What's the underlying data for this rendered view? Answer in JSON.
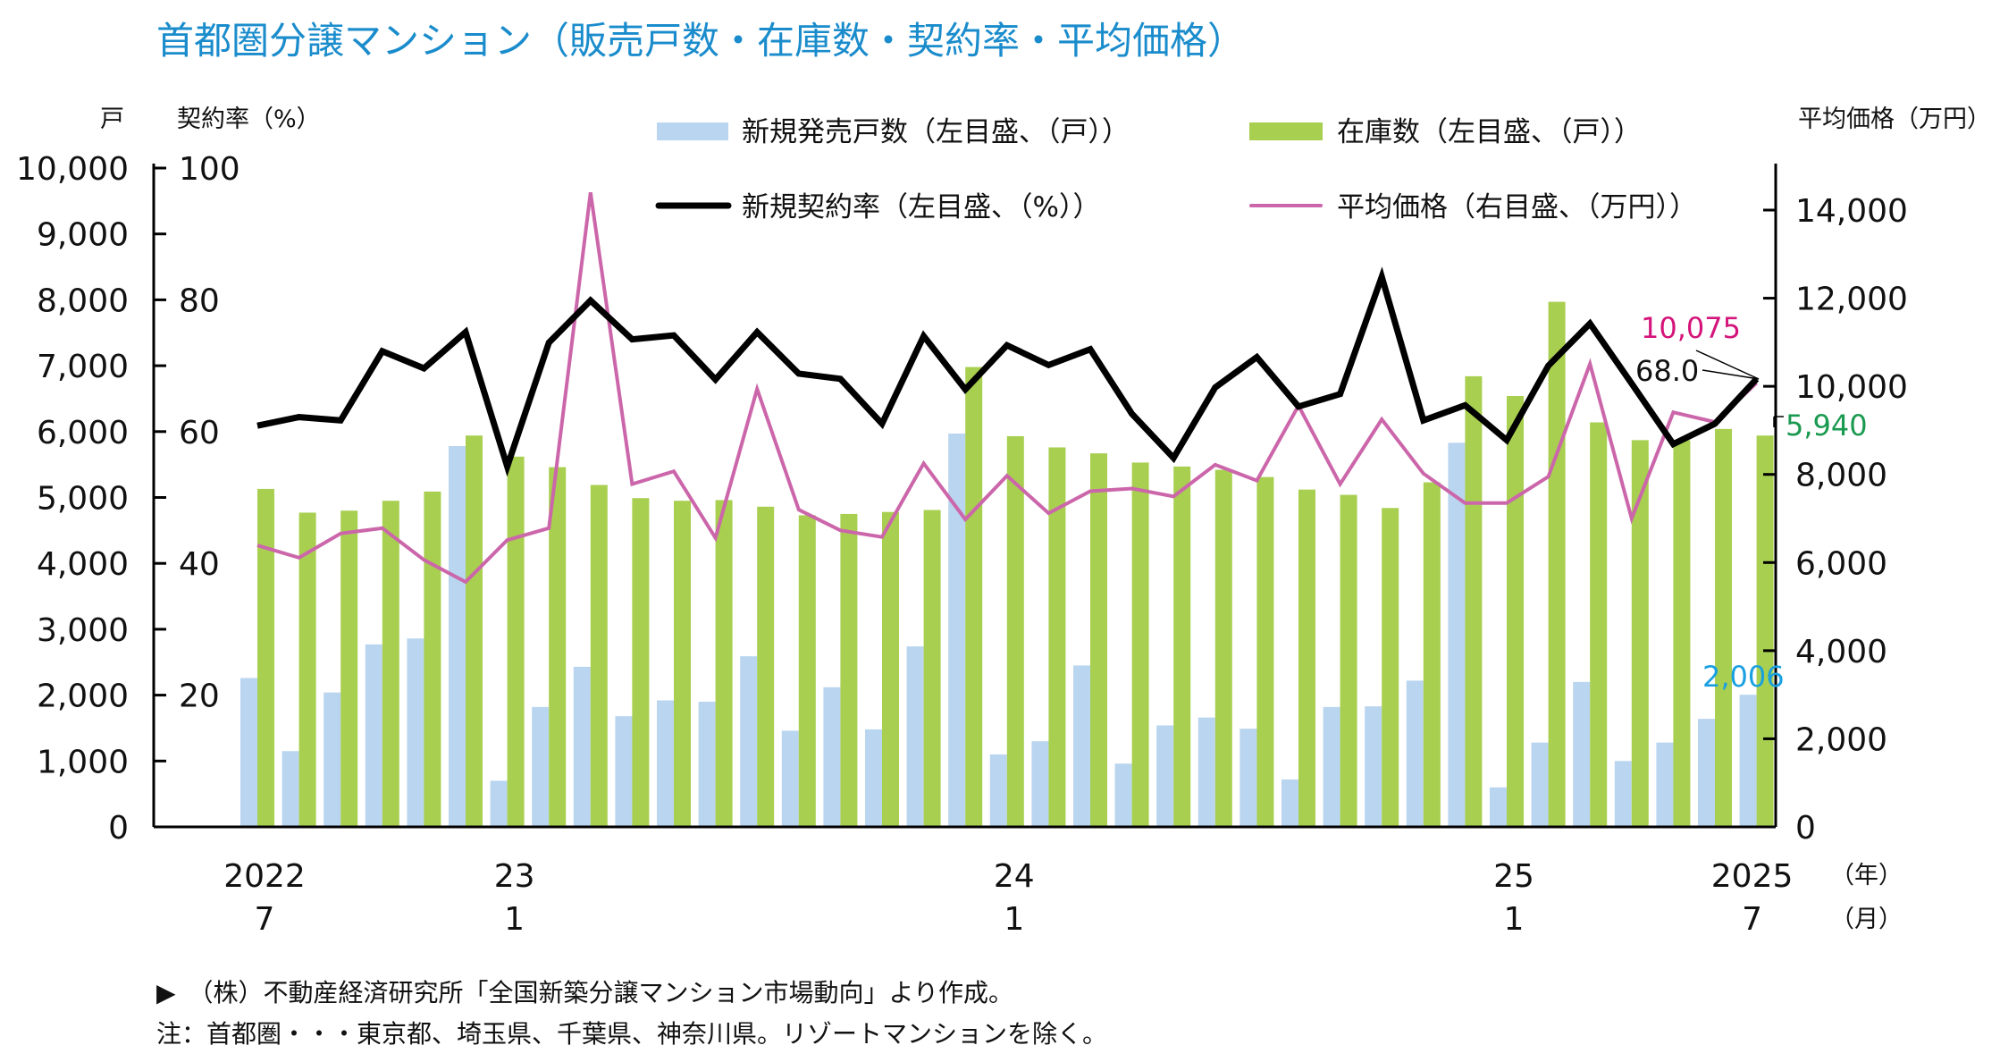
{
  "title": "首都圏分譲マンション（販売戸数・在庫数・契約率・平均価格）",
  "colors": {
    "title": "#1a8ccc",
    "new_sales": "#b9d5ef",
    "inventory": "#a8cf50",
    "contract_rate": "#000000",
    "avg_price": "#cc66aa",
    "price_label": "#d4147a",
    "inventory_label": "#1a9a50",
    "sales_label": "#1aa0e0"
  },
  "footnotes": [
    "▶　（株）不動産経済研究所「全国新築分譲マンション市場動向」より作成。",
    "注：首都圏・・・東京都、埼玉県、千葉県、神奈川県。リゾートマンションを除く。"
  ],
  "chart_data": {
    "type": "bar+line",
    "title": "首都圏分譲マンション（販売戸数・在庫数・契約率・平均価格）",
    "left_axis": {
      "unit_label": "戸",
      "ylim": [
        0,
        10000
      ],
      "ticks": [
        "0",
        "1,000",
        "2,000",
        "3,000",
        "4,000",
        "5,000",
        "6,000",
        "7,000",
        "8,000",
        "9,000",
        "10,000"
      ]
    },
    "rate_axis": {
      "unit_label": "契約率（%）",
      "ylim": [
        0,
        100
      ],
      "ticks": [
        "20",
        "40",
        "60",
        "80",
        "100"
      ]
    },
    "right_axis": {
      "unit_label": "平均価格（万円）",
      "ylim": [
        0,
        15000
      ],
      "ticks": [
        "0",
        "2,000",
        "4,000",
        "6,000",
        "8,000",
        "10,000",
        "12,000",
        "14,000"
      ]
    },
    "x_labels": [
      {
        "index": 0,
        "year": "2022",
        "month": "7"
      },
      {
        "index": 6,
        "year": "23",
        "month": "1"
      },
      {
        "index": 18,
        "year": "24",
        "month": "1"
      },
      {
        "index": 30,
        "year": "25",
        "month": "1"
      },
      {
        "index": 36,
        "year": "2025",
        "month": "7"
      }
    ],
    "x_unit_year": "（年）",
    "x_unit_month": "（月）",
    "x_range": [
      "2022-07",
      "2025-07"
    ],
    "legend_placement": "top",
    "grid": false,
    "series": [
      {
        "name": "新規発売戸数（左目盛、（戸））",
        "type": "bar",
        "axis": "left",
        "values": [
          2260,
          1150,
          2040,
          2770,
          2860,
          5780,
          700,
          1820,
          2430,
          1680,
          1920,
          1900,
          2590,
          1460,
          2120,
          1480,
          2740,
          5970,
          1100,
          1300,
          2450,
          960,
          1540,
          1660,
          1490,
          720,
          1820,
          1830,
          2220,
          5830,
          600,
          1280,
          2200,
          1000,
          1280,
          1640,
          2006
        ]
      },
      {
        "name": "在庫数（左目盛、（戸））",
        "type": "bar",
        "axis": "left",
        "values": [
          5130,
          4770,
          4800,
          4950,
          5090,
          5940,
          5620,
          5460,
          5190,
          4990,
          4950,
          4960,
          4860,
          4730,
          4750,
          4780,
          4810,
          6980,
          5930,
          5760,
          5670,
          5530,
          5470,
          5420,
          5310,
          5120,
          5040,
          4840,
          5230,
          6840,
          6540,
          7970,
          6140,
          5870,
          5870,
          6040,
          5940
        ]
      },
      {
        "name": "新規契約率（左目盛、（%））",
        "type": "line",
        "axis": "rate",
        "values": [
          60.9,
          62.2,
          61.7,
          72.2,
          69.6,
          75.1,
          54.7,
          73.5,
          79.9,
          74.0,
          74.6,
          67.9,
          75.1,
          68.8,
          68.0,
          61.2,
          74.5,
          66.4,
          73.1,
          70.1,
          72.5,
          62.7,
          56.0,
          66.7,
          71.3,
          63.8,
          65.7,
          83.5,
          61.7,
          64.0,
          58.7,
          70.0,
          76.4,
          67.3,
          58.1,
          61.2,
          68.0
        ]
      },
      {
        "name": "平均価格（右目盛、（万円））",
        "type": "line",
        "axis": "right",
        "values": [
          6390,
          6110,
          6660,
          6780,
          6060,
          5560,
          6510,
          6780,
          14400,
          7780,
          8070,
          6560,
          9940,
          7200,
          6730,
          6580,
          8250,
          6980,
          7970,
          7120,
          7620,
          7680,
          7500,
          8220,
          7860,
          9560,
          7780,
          9250,
          8020,
          7350,
          7350,
          7950,
          10510,
          7000,
          9410,
          9190,
          10075
        ]
      }
    ],
    "annotations": {
      "avg_price_last": "10,075",
      "contract_rate_last": "68.0",
      "inventory_last": "5,940",
      "new_sales_last": "2,006"
    }
  }
}
